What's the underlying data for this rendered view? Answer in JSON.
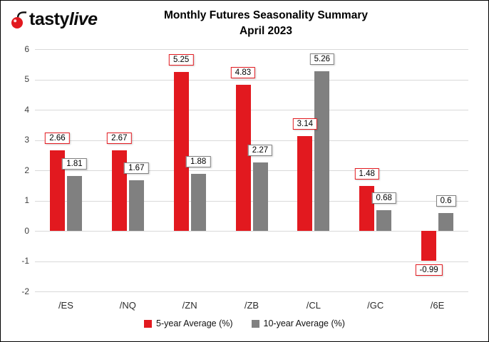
{
  "logo": {
    "tasty": "tasty",
    "live": "live"
  },
  "title": {
    "line1": "Monthly Futures Seasonality Summary",
    "line2": "April 2023"
  },
  "chart_data": {
    "type": "bar",
    "title": "Monthly Futures Seasonality Summary April 2023",
    "categories": [
      "/ES",
      "/NQ",
      "/ZN",
      "/ZB",
      "/CL",
      "/GC",
      "/6E"
    ],
    "series": [
      {
        "name": "5-year Average (%)",
        "color": "#e2191f",
        "values": [
          2.66,
          2.67,
          5.25,
          4.83,
          3.14,
          1.48,
          -0.99
        ]
      },
      {
        "name": "10-year Average (%)",
        "color": "#808080",
        "values": [
          1.81,
          1.67,
          1.88,
          2.27,
          5.26,
          0.68,
          0.6
        ]
      }
    ],
    "ylim": [
      -2,
      6
    ],
    "yticks": [
      -2,
      -1,
      0,
      1,
      2,
      3,
      4,
      5,
      6
    ],
    "ytick_step": 1,
    "grid": true,
    "legend_position": "bottom",
    "gridline_color": "#d9d9d9"
  }
}
